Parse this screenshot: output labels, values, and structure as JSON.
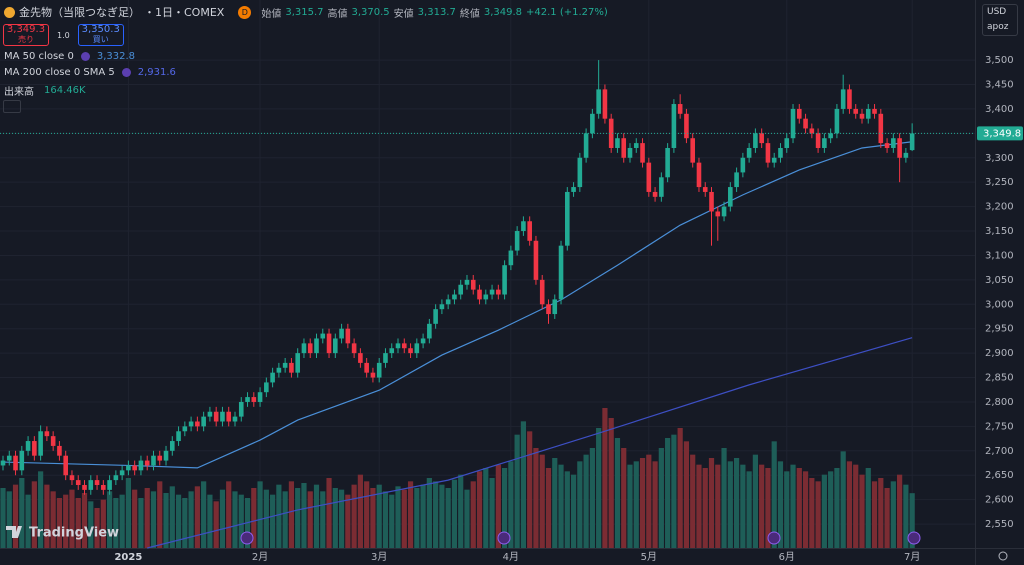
{
  "header": {
    "symbol": "金先物（当限つなぎ足）",
    "interval": "・1日・COMEX",
    "badge": "D",
    "open_label": "始値",
    "open": "3,315.7",
    "high_label": "高値",
    "high": "3,370.5",
    "low_label": "安値",
    "low": "3,313.7",
    "close_label": "終値",
    "close": "3,349.8",
    "change": "+42.1 (+1.27%)"
  },
  "trade": {
    "sell_price": "3,349.3",
    "sell": "売り",
    "qty": "1.0",
    "buy_price": "3,350.3",
    "buy": "買い"
  },
  "indicators": [
    {
      "name": "MA 50 close 0",
      "value": "3,332.8"
    },
    {
      "name": "MA 200 close 0 SMA 5",
      "value": "2,931.6"
    },
    {
      "name": "出来高",
      "value": "164.46K"
    }
  ],
  "currency": "USD",
  "unit": "apoz",
  "logo": "TradingView",
  "chart_data": {
    "type": "candlestick",
    "categories": [
      null,
      null,
      null,
      null,
      null,
      null,
      null,
      null,
      null,
      null,
      null,
      null,
      null,
      null,
      null,
      null,
      null,
      null,
      null,
      null,
      "2025",
      null,
      null,
      null,
      null,
      null,
      null,
      null,
      null,
      null,
      null,
      null,
      null,
      null,
      null,
      null,
      null,
      null,
      null,
      null,
      null,
      "2月",
      null,
      null,
      null,
      null,
      null,
      null,
      null,
      null,
      null,
      null,
      null,
      null,
      null,
      null,
      null,
      null,
      null,
      null,
      "3月",
      null,
      null,
      null,
      null,
      null,
      null,
      null,
      null,
      null,
      null,
      null,
      null,
      null,
      null,
      null,
      null,
      null,
      null,
      null,
      null,
      "4月",
      null,
      null,
      null,
      null,
      null,
      null,
      null,
      null,
      null,
      null,
      null,
      null,
      null,
      null,
      null,
      null,
      null,
      null,
      null,
      null,
      null,
      "5月",
      null,
      null,
      null,
      null,
      null,
      null,
      null,
      null,
      null,
      null,
      null,
      null,
      null,
      null,
      null,
      null,
      null,
      null,
      null,
      null,
      null,
      "6月",
      null,
      null,
      null,
      null,
      null,
      null,
      null,
      null,
      null,
      null,
      null,
      null,
      null,
      null,
      null,
      null,
      null,
      null,
      null,
      "7月"
    ],
    "open": [
      2670,
      2680,
      2690,
      2660,
      2700,
      2720,
      2690,
      2740,
      2730,
      2710,
      2690,
      2650,
      2640,
      2630,
      2620,
      2640,
      2630,
      2620,
      2640,
      2650,
      2660,
      2670,
      2660,
      2680,
      2670,
      2690,
      2680,
      2700,
      2720,
      2740,
      2750,
      2760,
      2750,
      2770,
      2780,
      2760,
      2780,
      2760,
      2770,
      2800,
      2810,
      2800,
      2820,
      2840,
      2860,
      2870,
      2880,
      2860,
      2900,
      2920,
      2900,
      2930,
      2940,
      2900,
      2930,
      2950,
      2920,
      2900,
      2880,
      2860,
      2850,
      2880,
      2900,
      2910,
      2920,
      2910,
      2900,
      2920,
      2930,
      2960,
      2990,
      3000,
      3010,
      3020,
      3040,
      3050,
      3030,
      3010,
      3020,
      3030,
      3020,
      3080,
      3110,
      3150,
      3170,
      3130,
      3050,
      3000,
      2980,
      3010,
      3120,
      3230,
      3240,
      3300,
      3350,
      3390,
      3440,
      3380,
      3320,
      3340,
      3300,
      3320,
      3330,
      3290,
      3230,
      3220,
      3260,
      3320,
      3410,
      3390,
      3340,
      3290,
      3240,
      3230,
      3190,
      3180,
      3200,
      3240,
      3270,
      3300,
      3320,
      3350,
      3330,
      3290,
      3300,
      3320,
      3340,
      3400,
      3380,
      3360,
      3350,
      3320,
      3340,
      3350,
      3400,
      3440,
      3400,
      3390,
      3380,
      3400,
      3390,
      3330,
      3320,
      3340,
      3300,
      3315.7
    ],
    "high": [
      2690,
      2700,
      2700,
      2710,
      2730,
      2730,
      2752,
      2750,
      2740,
      2720,
      2700,
      2660,
      2650,
      2640,
      2650,
      2650,
      2640,
      2650,
      2660,
      2670,
      2680,
      2680,
      2690,
      2690,
      2700,
      2700,
      2710,
      2730,
      2750,
      2760,
      2770,
      2770,
      2780,
      2790,
      2790,
      2790,
      2790,
      2780,
      2810,
      2820,
      2820,
      2830,
      2850,
      2870,
      2880,
      2890,
      2890,
      2910,
      2930,
      2930,
      2940,
      2950,
      2950,
      2940,
      2960,
      2960,
      2930,
      2910,
      2890,
      2870,
      2890,
      2910,
      2920,
      2930,
      2930,
      2920,
      2930,
      2940,
      2970,
      3000,
      3010,
      3020,
      3030,
      3050,
      3060,
      3060,
      3040,
      3030,
      3040,
      3040,
      3090,
      3120,
      3160,
      3180,
      3180,
      3140,
      3060,
      3010,
      3020,
      3130,
      3240,
      3250,
      3310,
      3360,
      3400,
      3500,
      3450,
      3390,
      3350,
      3350,
      3330,
      3340,
      3340,
      3300,
      3240,
      3270,
      3330,
      3420,
      3430,
      3400,
      3350,
      3300,
      3250,
      3240,
      3200,
      3210,
      3250,
      3280,
      3310,
      3330,
      3360,
      3360,
      3340,
      3310,
      3330,
      3350,
      3410,
      3410,
      3390,
      3370,
      3360,
      3350,
      3360,
      3410,
      3470,
      3450,
      3410,
      3400,
      3410,
      3410,
      3400,
      3340,
      3350,
      3350,
      3320,
      3370.5
    ],
    "low": [
      2660,
      2670,
      2650,
      2650,
      2690,
      2680,
      2680,
      2720,
      2700,
      2680,
      2640,
      2630,
      2620,
      2610,
      2610,
      2620,
      2610,
      2610,
      2630,
      2640,
      2650,
      2650,
      2650,
      2660,
      2660,
      2670,
      2670,
      2690,
      2710,
      2730,
      2740,
      2740,
      2740,
      2760,
      2750,
      2750,
      2750,
      2750,
      2760,
      2790,
      2790,
      2790,
      2810,
      2830,
      2850,
      2860,
      2850,
      2850,
      2890,
      2890,
      2890,
      2920,
      2890,
      2890,
      2920,
      2910,
      2890,
      2870,
      2850,
      2840,
      2840,
      2870,
      2890,
      2900,
      2900,
      2890,
      2890,
      2910,
      2920,
      2950,
      2980,
      2990,
      3000,
      3010,
      3030,
      3020,
      3000,
      3000,
      3010,
      3010,
      3010,
      3070,
      3100,
      3140,
      3120,
      3040,
      2990,
      2960,
      2970,
      3000,
      3110,
      3220,
      3230,
      3290,
      3340,
      3380,
      3370,
      3310,
      3310,
      3290,
      3290,
      3310,
      3280,
      3220,
      3210,
      3210,
      3250,
      3310,
      3380,
      3330,
      3280,
      3230,
      3220,
      3120,
      3130,
      3170,
      3190,
      3230,
      3260,
      3290,
      3310,
      3320,
      3280,
      3280,
      3290,
      3310,
      3330,
      3370,
      3350,
      3340,
      3310,
      3310,
      3330,
      3340,
      3390,
      3390,
      3380,
      3370,
      3370,
      3380,
      3320,
      3310,
      3310,
      3250,
      3290,
      3313.7
    ],
    "close": [
      2680,
      2690,
      2660,
      2700,
      2720,
      2690,
      2740,
      2730,
      2710,
      2690,
      2650,
      2640,
      2630,
      2620,
      2640,
      2630,
      2620,
      2640,
      2650,
      2660,
      2670,
      2660,
      2680,
      2670,
      2690,
      2680,
      2700,
      2720,
      2740,
      2750,
      2760,
      2750,
      2770,
      2780,
      2760,
      2780,
      2760,
      2770,
      2800,
      2810,
      2800,
      2820,
      2840,
      2860,
      2870,
      2880,
      2860,
      2900,
      2920,
      2900,
      2930,
      2940,
      2900,
      2930,
      2950,
      2920,
      2900,
      2880,
      2860,
      2850,
      2880,
      2900,
      2910,
      2920,
      2910,
      2900,
      2920,
      2930,
      2960,
      2990,
      3000,
      3010,
      3020,
      3040,
      3050,
      3030,
      3010,
      3020,
      3030,
      3020,
      3080,
      3110,
      3150,
      3170,
      3130,
      3050,
      3000,
      2980,
      3010,
      3120,
      3230,
      3240,
      3300,
      3350,
      3390,
      3440,
      3380,
      3320,
      3340,
      3300,
      3320,
      3330,
      3290,
      3230,
      3220,
      3260,
      3320,
      3410,
      3390,
      3340,
      3290,
      3240,
      3230,
      3190,
      3180,
      3200,
      3240,
      3270,
      3300,
      3320,
      3350,
      3330,
      3290,
      3300,
      3320,
      3340,
      3400,
      3380,
      3360,
      3350,
      3320,
      3340,
      3350,
      3400,
      3440,
      3400,
      3390,
      3380,
      3400,
      3390,
      3330,
      3320,
      3340,
      3300,
      3310,
      3349.8
    ],
    "volume": [
      180,
      170,
      190,
      210,
      160,
      200,
      230,
      190,
      170,
      150,
      160,
      175,
      150,
      165,
      140,
      120,
      145,
      170,
      150,
      160,
      210,
      175,
      150,
      180,
      170,
      200,
      165,
      185,
      160,
      150,
      170,
      185,
      200,
      160,
      140,
      175,
      200,
      170,
      160,
      150,
      180,
      200,
      175,
      160,
      190,
      170,
      200,
      180,
      195,
      170,
      190,
      170,
      210,
      180,
      175,
      160,
      190,
      220,
      200,
      180,
      190,
      170,
      160,
      185,
      175,
      200,
      180,
      190,
      210,
      200,
      190,
      180,
      205,
      220,
      175,
      200,
      230,
      240,
      210,
      250,
      240,
      260,
      340,
      380,
      350,
      300,
      280,
      240,
      270,
      250,
      230,
      220,
      260,
      280,
      300,
      360,
      420,
      390,
      330,
      300,
      250,
      260,
      270,
      280,
      260,
      300,
      330,
      340,
      360,
      320,
      280,
      250,
      240,
      270,
      250,
      300,
      260,
      270,
      250,
      230,
      280,
      250,
      240,
      320,
      260,
      230,
      250,
      240,
      230,
      210,
      200,
      220,
      230,
      240,
      290,
      260,
      250,
      220,
      240,
      200,
      210,
      180,
      200,
      220,
      190,
      164.46
    ],
    "volume_lim": [
      0,
      450
    ],
    "lines": [
      {
        "color": "#4a8fd8",
        "x": [
          0,
          20,
          31,
          41,
          47,
          60,
          70,
          79,
          89,
          98,
          108,
          118,
          127,
          137,
          145
        ],
        "values": [
          2677,
          2670,
          2665,
          2722,
          2763,
          2824,
          2896,
          2947,
          3009,
          3080,
          3162,
          3224,
          3275,
          3320,
          3332.8
        ]
      },
      {
        "color": "#3d4fc4",
        "x": [
          23,
          47,
          71,
          95,
          119,
          145
        ],
        "values": [
          2501,
          2579,
          2640,
          2736,
          2835,
          2931.6
        ]
      }
    ],
    "up_color": "#22ab94",
    "down_color": "#f23645",
    "volume_up_color": "#1e5e58",
    "volume_down_color": "#7b2c33",
    "ylim": [
      2501,
      3623
    ],
    "yticks": [
      {
        "value": 2550,
        "label": "2,550"
      },
      {
        "value": 2600,
        "label": "2,600"
      },
      {
        "value": 2650,
        "label": "2,650"
      },
      {
        "value": 2700,
        "label": "2,700"
      },
      {
        "value": 2750,
        "label": "2,750"
      },
      {
        "value": 2800,
        "label": "2,800"
      },
      {
        "value": 2850,
        "label": "2,850"
      },
      {
        "value": 2900,
        "label": "2,900"
      },
      {
        "value": 2950,
        "label": "2,950"
      },
      {
        "value": 3000,
        "label": "3,000"
      },
      {
        "value": 3050,
        "label": "3,050"
      },
      {
        "value": 3100,
        "label": "3,100"
      },
      {
        "value": 3150,
        "label": "3,150"
      },
      {
        "value": 3200,
        "label": "3,200"
      },
      {
        "value": 3250,
        "label": "3,250"
      },
      {
        "value": 3300,
        "label": "3,300"
      },
      {
        "value": 3350,
        "label": "3,350"
      },
      {
        "value": 3400,
        "label": "3,400"
      },
      {
        "value": 3450,
        "label": "3,450"
      },
      {
        "value": 3500,
        "label": "3,500"
      }
    ],
    "grid": true
  }
}
